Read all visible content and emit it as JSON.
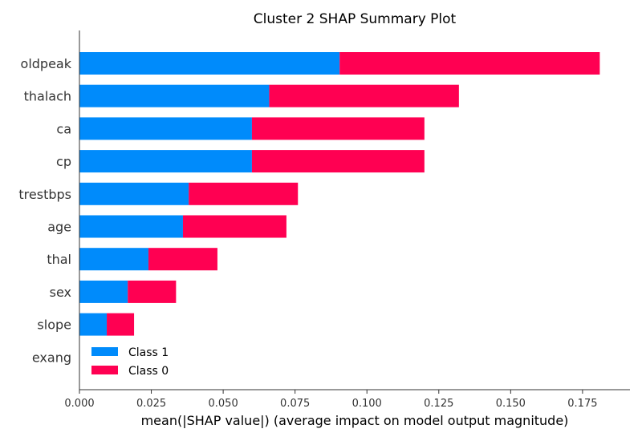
{
  "chart_data": {
    "type": "bar",
    "orientation": "horizontal",
    "stacked": true,
    "title": "Cluster 2 SHAP Summary Plot",
    "xlabel": "mean(|SHAP value|) (average impact on model output magnitude)",
    "ylabel": "",
    "xlim": [
      0,
      0.1915
    ],
    "xticks": [
      "0.000",
      "0.025",
      "0.050",
      "0.075",
      "0.100",
      "0.125",
      "0.150",
      "0.175"
    ],
    "xtick_values": [
      0,
      0.025,
      0.05,
      0.075,
      0.1,
      0.125,
      0.15,
      0.175
    ],
    "categories": [
      "oldpeak",
      "thalach",
      "ca",
      "cp",
      "trestbps",
      "age",
      "thal",
      "sex",
      "slope",
      "exang"
    ],
    "series": [
      {
        "name": "Class 1",
        "color": "#008bfb",
        "values": [
          0.0905,
          0.066,
          0.06,
          0.06,
          0.038,
          0.036,
          0.024,
          0.0168,
          0.0095,
          0.0
        ]
      },
      {
        "name": "Class 0",
        "color": "#ff0052",
        "values": [
          0.0905,
          0.066,
          0.06,
          0.06,
          0.038,
          0.036,
          0.024,
          0.0168,
          0.0095,
          0.0
        ]
      }
    ],
    "legend": {
      "position": "lower-left",
      "entries": [
        "Class 1",
        "Class 0"
      ]
    },
    "grid": false
  }
}
